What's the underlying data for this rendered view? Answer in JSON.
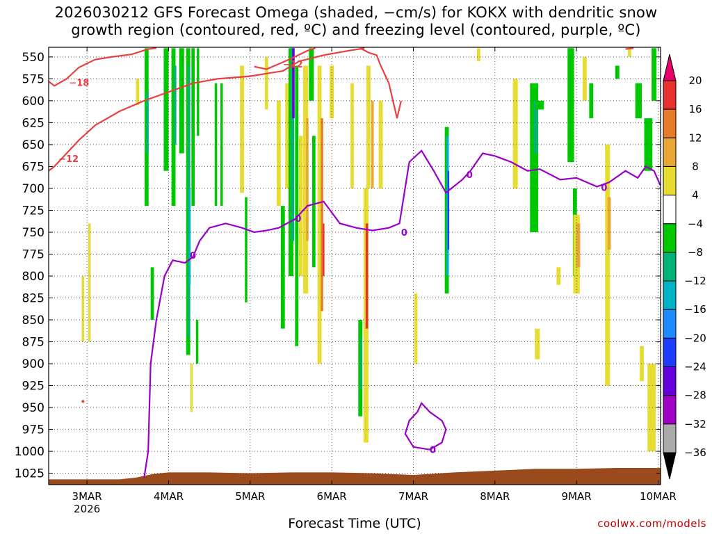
{
  "chart_data": {
    "type": "heatmap",
    "title": "2026030212 GFS Forecast Omega (shaded, −cm/s) for KOKX with dendritic snow\ngrowth region (contoured, red, ºC) and freezing level (contoured, purple, ºC)",
    "xlabel": "Forecast Time (UTC)",
    "ylabel": "",
    "credit": "coolwx.com/models",
    "y_axis": {
      "unit": "hPa",
      "ticks": [
        550,
        575,
        600,
        625,
        650,
        675,
        700,
        725,
        750,
        775,
        800,
        825,
        850,
        875,
        900,
        925,
        950,
        975,
        1000,
        1025
      ],
      "ylim": [
        1038,
        539
      ],
      "grid": "dotted"
    },
    "x_axis": {
      "ticks": [
        {
          "label": "3MAR",
          "sub": "2026",
          "day": 3
        },
        {
          "label": "4MAR",
          "sub": "",
          "day": 4
        },
        {
          "label": "5MAR",
          "sub": "",
          "day": 5
        },
        {
          "label": "6MAR",
          "sub": "",
          "day": 6
        },
        {
          "label": "7MAR",
          "sub": "",
          "day": 7
        },
        {
          "label": "8MAR",
          "sub": "",
          "day": 8
        },
        {
          "label": "9MAR",
          "sub": "",
          "day": 9
        },
        {
          "label": "10MAR",
          "sub": "",
          "day": 10
        }
      ],
      "xlim": [
        2.53,
        10.03
      ],
      "grid": "dotted"
    },
    "colorbar": {
      "labels": [
        "20",
        "16",
        "12",
        "8",
        "4",
        "−4",
        "−8",
        "−12",
        "−16",
        "−20",
        "−24",
        "−28",
        "−32",
        "−36"
      ],
      "colors": [
        "#e8006a",
        "#e8302e",
        "#e87b2a",
        "#e8a634",
        "#e6dc32",
        "#ffffff",
        "#00c800",
        "#00b478",
        "#00b4c8",
        "#1e8cff",
        "#1e3cff",
        "#6400dc",
        "#a000c8",
        "#aaaaaa",
        "#000000"
      ]
    },
    "omega_cells": [
      {
        "d": 3.03,
        "w": 0.03,
        "p1": 740,
        "p2": 875,
        "c": "#e6dc32"
      },
      {
        "d": 2.95,
        "w": 0.03,
        "p1": 800,
        "p2": 875,
        "c": "#e6dc32"
      },
      {
        "d": 3.62,
        "w": 0.04,
        "p1": 575,
        "p2": 605,
        "c": "#e6dc32"
      },
      {
        "d": 3.73,
        "w": 0.05,
        "p1": 540,
        "p2": 720,
        "c": "#00c800"
      },
      {
        "d": 3.74,
        "w": 0.03,
        "p1": 590,
        "p2": 660,
        "c": "#00b478"
      },
      {
        "d": 3.8,
        "w": 0.04,
        "p1": 790,
        "p2": 850,
        "c": "#00c800"
      },
      {
        "d": 3.97,
        "w": 0.06,
        "p1": 540,
        "p2": 680,
        "c": "#00c800"
      },
      {
        "d": 4.06,
        "w": 0.05,
        "p1": 540,
        "p2": 720,
        "c": "#00c800"
      },
      {
        "d": 4.08,
        "w": 0.03,
        "p1": 560,
        "p2": 650,
        "c": "#00b478"
      },
      {
        "d": 4.16,
        "w": 0.06,
        "p1": 540,
        "p2": 660,
        "c": "#00c800"
      },
      {
        "d": 4.24,
        "w": 0.05,
        "p1": 540,
        "p2": 890,
        "c": "#00c800"
      },
      {
        "d": 4.25,
        "w": 0.03,
        "p1": 560,
        "p2": 870,
        "c": "#00b478"
      },
      {
        "d": 4.26,
        "w": 0.02,
        "p1": 700,
        "p2": 810,
        "c": "#00b4c8"
      },
      {
        "d": 4.3,
        "w": 0.04,
        "p1": 540,
        "p2": 720,
        "c": "#00c800"
      },
      {
        "d": 4.35,
        "w": 0.03,
        "p1": 850,
        "p2": 900,
        "c": "#00c800"
      },
      {
        "d": 4.28,
        "w": 0.03,
        "p1": 900,
        "p2": 955,
        "c": "#e6dc32"
      },
      {
        "d": 4.36,
        "w": 0.03,
        "p1": 540,
        "p2": 640,
        "c": "#00c800"
      },
      {
        "d": 4.58,
        "w": 0.03,
        "p1": 580,
        "p2": 720,
        "c": "#00c800"
      },
      {
        "d": 4.65,
        "w": 0.03,
        "p1": 580,
        "p2": 720,
        "c": "#00c800"
      },
      {
        "d": 4.9,
        "w": 0.05,
        "p1": 560,
        "p2": 705,
        "c": "#e6dc32"
      },
      {
        "d": 4.95,
        "w": 0.03,
        "p1": 710,
        "p2": 830,
        "c": "#00c800"
      },
      {
        "d": 5.2,
        "w": 0.04,
        "p1": 550,
        "p2": 610,
        "c": "#e6dc32"
      },
      {
        "d": 5.35,
        "w": 0.05,
        "p1": 600,
        "p2": 720,
        "c": "#e6dc32"
      },
      {
        "d": 5.4,
        "w": 0.05,
        "p1": 720,
        "p2": 860,
        "c": "#00c800"
      },
      {
        "d": 5.45,
        "w": 0.04,
        "p1": 580,
        "p2": 700,
        "c": "#e6dc32"
      },
      {
        "d": 5.5,
        "w": 0.06,
        "p1": 540,
        "p2": 800,
        "c": "#00c800"
      },
      {
        "d": 5.52,
        "w": 0.04,
        "p1": 540,
        "p2": 760,
        "c": "#00b478"
      },
      {
        "d": 5.53,
        "w": 0.03,
        "p1": 540,
        "p2": 620,
        "c": "#6400dc"
      },
      {
        "d": 5.57,
        "w": 0.04,
        "p1": 560,
        "p2": 880,
        "c": "#00c800"
      },
      {
        "d": 5.62,
        "w": 0.05,
        "p1": 640,
        "p2": 800,
        "c": "#e6dc32"
      },
      {
        "d": 5.68,
        "w": 0.06,
        "p1": 560,
        "p2": 820,
        "c": "#e6dc32"
      },
      {
        "d": 5.7,
        "w": 0.03,
        "p1": 620,
        "p2": 760,
        "c": "#e8a634"
      },
      {
        "d": 5.75,
        "w": 0.06,
        "p1": 540,
        "p2": 600,
        "c": "#00c800"
      },
      {
        "d": 5.78,
        "w": 0.04,
        "p1": 640,
        "p2": 790,
        "c": "#00c800"
      },
      {
        "d": 5.85,
        "w": 0.05,
        "p1": 560,
        "p2": 900,
        "c": "#e6dc32"
      },
      {
        "d": 5.88,
        "w": 0.03,
        "p1": 620,
        "p2": 840,
        "c": "#e87b2a"
      },
      {
        "d": 5.9,
        "w": 0.02,
        "p1": 740,
        "p2": 800,
        "c": "#e8302e"
      },
      {
        "d": 6.0,
        "w": 0.05,
        "p1": 560,
        "p2": 620,
        "c": "#e6dc32"
      },
      {
        "d": 6.25,
        "w": 0.04,
        "p1": 580,
        "p2": 700,
        "c": "#e6dc32"
      },
      {
        "d": 6.35,
        "w": 0.05,
        "p1": 850,
        "p2": 960,
        "c": "#00c800"
      },
      {
        "d": 6.36,
        "w": 0.02,
        "p1": 870,
        "p2": 930,
        "c": "#00b478"
      },
      {
        "d": 6.42,
        "w": 0.06,
        "p1": 700,
        "p2": 990,
        "c": "#e6dc32"
      },
      {
        "d": 6.43,
        "w": 0.03,
        "p1": 740,
        "p2": 860,
        "c": "#e8302e"
      },
      {
        "d": 6.45,
        "w": 0.05,
        "p1": 560,
        "p2": 700,
        "c": "#e6dc32"
      },
      {
        "d": 6.5,
        "w": 0.03,
        "p1": 600,
        "p2": 700,
        "c": "#e8a634"
      },
      {
        "d": 6.6,
        "w": 0.05,
        "p1": 600,
        "p2": 700,
        "c": "#e6dc32"
      },
      {
        "d": 7.03,
        "w": 0.04,
        "p1": 820,
        "p2": 900,
        "c": "#e6dc32"
      },
      {
        "d": 7.41,
        "w": 0.05,
        "p1": 630,
        "p2": 820,
        "c": "#00c800"
      },
      {
        "d": 7.42,
        "w": 0.03,
        "p1": 640,
        "p2": 800,
        "c": "#00b4c8"
      },
      {
        "d": 7.43,
        "w": 0.02,
        "p1": 680,
        "p2": 770,
        "c": "#1e3cff"
      },
      {
        "d": 7.8,
        "w": 0.04,
        "p1": 540,
        "p2": 555,
        "c": "#e6dc32"
      },
      {
        "d": 8.25,
        "w": 0.06,
        "p1": 575,
        "p2": 700,
        "c": "#e6dc32"
      },
      {
        "d": 8.48,
        "w": 0.1,
        "p1": 580,
        "p2": 750,
        "c": "#00c800"
      },
      {
        "d": 8.5,
        "w": 0.05,
        "p1": 600,
        "p2": 660,
        "c": "#00b478"
      },
      {
        "d": 8.55,
        "w": 0.1,
        "p1": 600,
        "p2": 610,
        "c": "#00c800"
      },
      {
        "d": 8.52,
        "w": 0.06,
        "p1": 860,
        "p2": 895,
        "c": "#e6dc32"
      },
      {
        "d": 8.78,
        "w": 0.05,
        "p1": 790,
        "p2": 810,
        "c": "#e6dc32"
      },
      {
        "d": 8.92,
        "w": 0.05,
        "p1": 540,
        "p2": 580,
        "c": "#00b4c8"
      },
      {
        "d": 8.93,
        "w": 0.08,
        "p1": 540,
        "p2": 670,
        "c": "#00c800"
      },
      {
        "d": 8.98,
        "w": 0.05,
        "p1": 700,
        "p2": 800,
        "c": "#00c800"
      },
      {
        "d": 9.0,
        "w": 0.08,
        "p1": 730,
        "p2": 820,
        "c": "#e6dc32"
      },
      {
        "d": 9.02,
        "w": 0.05,
        "p1": 740,
        "p2": 790,
        "c": "#e8a634"
      },
      {
        "d": 9.1,
        "w": 0.05,
        "p1": 550,
        "p2": 600,
        "c": "#e6dc32"
      },
      {
        "d": 9.18,
        "w": 0.05,
        "p1": 580,
        "p2": 620,
        "c": "#00c800"
      },
      {
        "d": 9.38,
        "w": 0.06,
        "p1": 650,
        "p2": 925,
        "c": "#e6dc32"
      },
      {
        "d": 9.4,
        "w": 0.04,
        "p1": 710,
        "p2": 770,
        "c": "#e8a634"
      },
      {
        "d": 9.5,
        "w": 0.05,
        "p1": 560,
        "p2": 575,
        "c": "#00c800"
      },
      {
        "d": 9.65,
        "w": 0.04,
        "p1": 540,
        "p2": 550,
        "c": "#e6dc32"
      },
      {
        "d": 9.76,
        "w": 0.08,
        "p1": 580,
        "p2": 620,
        "c": "#00c800"
      },
      {
        "d": 9.8,
        "w": 0.05,
        "p1": 880,
        "p2": 920,
        "c": "#e6dc32"
      },
      {
        "d": 9.88,
        "w": 0.1,
        "p1": 620,
        "p2": 680,
        "c": "#00c800"
      },
      {
        "d": 9.92,
        "w": 0.1,
        "p1": 900,
        "p2": 1000,
        "c": "#e6dc32"
      },
      {
        "d": 9.95,
        "w": 0.06,
        "p1": 540,
        "p2": 600,
        "c": "#00c800"
      }
    ],
    "dendritic_upper": {
      "label": "−18",
      "points": [
        [
          2.53,
          578
        ],
        [
          2.6,
          583
        ],
        [
          2.75,
          575
        ],
        [
          2.9,
          562
        ],
        [
          3.1,
          553
        ],
        [
          3.3,
          550
        ],
        [
          3.55,
          547
        ],
        [
          3.75,
          541
        ],
        [
          3.85,
          540
        ]
      ]
    },
    "dendritic_lower": {
      "label": "−12",
      "points": [
        [
          2.53,
          680
        ],
        [
          2.6,
          675
        ],
        [
          2.75,
          660
        ],
        [
          2.9,
          645
        ],
        [
          3.1,
          628
        ],
        [
          3.4,
          612
        ],
        [
          3.7,
          600
        ],
        [
          4.0,
          590
        ],
        [
          4.3,
          580
        ],
        [
          4.6,
          575
        ],
        [
          5.0,
          572
        ],
        [
          5.4,
          566
        ],
        [
          5.6,
          555
        ],
        [
          5.9,
          548
        ],
        [
          6.2,
          543
        ],
        [
          6.4,
          540
        ]
      ]
    },
    "dendritic_upper2": {
      "label": "−12",
      "points": [
        [
          5.05,
          561
        ],
        [
          5.2,
          564
        ],
        [
          5.35,
          558
        ],
        [
          5.5,
          552
        ],
        [
          5.7,
          543
        ],
        [
          5.8,
          540
        ]
      ]
    },
    "dendritic_upper3": {
      "label": "",
      "points": [
        [
          6.35,
          540
        ],
        [
          6.45,
          545
        ],
        [
          6.55,
          548
        ],
        [
          6.6,
          560
        ],
        [
          6.7,
          580
        ],
        [
          6.75,
          600
        ],
        [
          6.8,
          620
        ],
        [
          6.85,
          600
        ]
      ]
    },
    "dendritic_tail": {
      "label": "",
      "points": [
        [
          9.6,
          541
        ],
        [
          9.7,
          540
        ]
      ]
    },
    "freezing_main": {
      "label": "0",
      "points": [
        [
          3.7,
          1030
        ],
        [
          3.75,
          1000
        ],
        [
          3.78,
          900
        ],
        [
          3.85,
          850
        ],
        [
          3.95,
          800
        ],
        [
          4.05,
          782
        ],
        [
          4.2,
          785
        ],
        [
          4.3,
          778
        ],
        [
          4.38,
          760
        ],
        [
          4.5,
          745
        ],
        [
          4.7,
          740
        ],
        [
          4.9,
          745
        ],
        [
          5.05,
          750
        ],
        [
          5.2,
          748
        ],
        [
          5.35,
          745
        ],
        [
          5.45,
          740
        ],
        [
          5.55,
          735
        ],
        [
          5.7,
          720
        ],
        [
          5.9,
          715
        ],
        [
          6.1,
          740
        ],
        [
          6.3,
          745
        ],
        [
          6.5,
          748
        ],
        [
          6.7,
          745
        ],
        [
          6.83,
          740
        ],
        [
          6.95,
          670
        ],
        [
          7.1,
          657
        ],
        [
          7.25,
          680
        ],
        [
          7.4,
          705
        ],
        [
          7.6,
          690
        ],
        [
          7.7,
          680
        ],
        [
          7.85,
          660
        ],
        [
          8.0,
          663
        ],
        [
          8.2,
          670
        ],
        [
          8.4,
          680
        ],
        [
          8.55,
          678
        ],
        [
          8.8,
          690
        ],
        [
          9.0,
          688
        ],
        [
          9.25,
          698
        ],
        [
          9.4,
          693
        ],
        [
          9.6,
          680
        ],
        [
          9.75,
          688
        ],
        [
          9.85,
          675
        ],
        [
          9.95,
          680
        ],
        [
          10.03,
          697
        ]
      ]
    },
    "freezing_bubble": {
      "label": "0",
      "points": [
        [
          6.9,
          980
        ],
        [
          6.95,
          965
        ],
        [
          7.05,
          955
        ],
        [
          7.1,
          945
        ],
        [
          7.2,
          955
        ],
        [
          7.35,
          965
        ],
        [
          7.4,
          975
        ],
        [
          7.35,
          990
        ],
        [
          7.2,
          998
        ],
        [
          7.0,
          995
        ]
      ]
    },
    "terrain_color": "#9a4a1c",
    "surface": [
      [
        2.53,
        1032
      ],
      [
        3.4,
        1032
      ],
      [
        3.6,
        1030
      ],
      [
        3.8,
        1026
      ],
      [
        4.0,
        1024
      ],
      [
        4.5,
        1024
      ],
      [
        5.0,
        1025
      ],
      [
        5.5,
        1024
      ],
      [
        6.0,
        1024
      ],
      [
        6.5,
        1025
      ],
      [
        7.0,
        1027
      ],
      [
        7.5,
        1024
      ],
      [
        8.0,
        1022
      ],
      [
        8.5,
        1020
      ],
      [
        9.0,
        1020
      ],
      [
        9.5,
        1019
      ],
      [
        10.03,
        1019
      ]
    ]
  }
}
